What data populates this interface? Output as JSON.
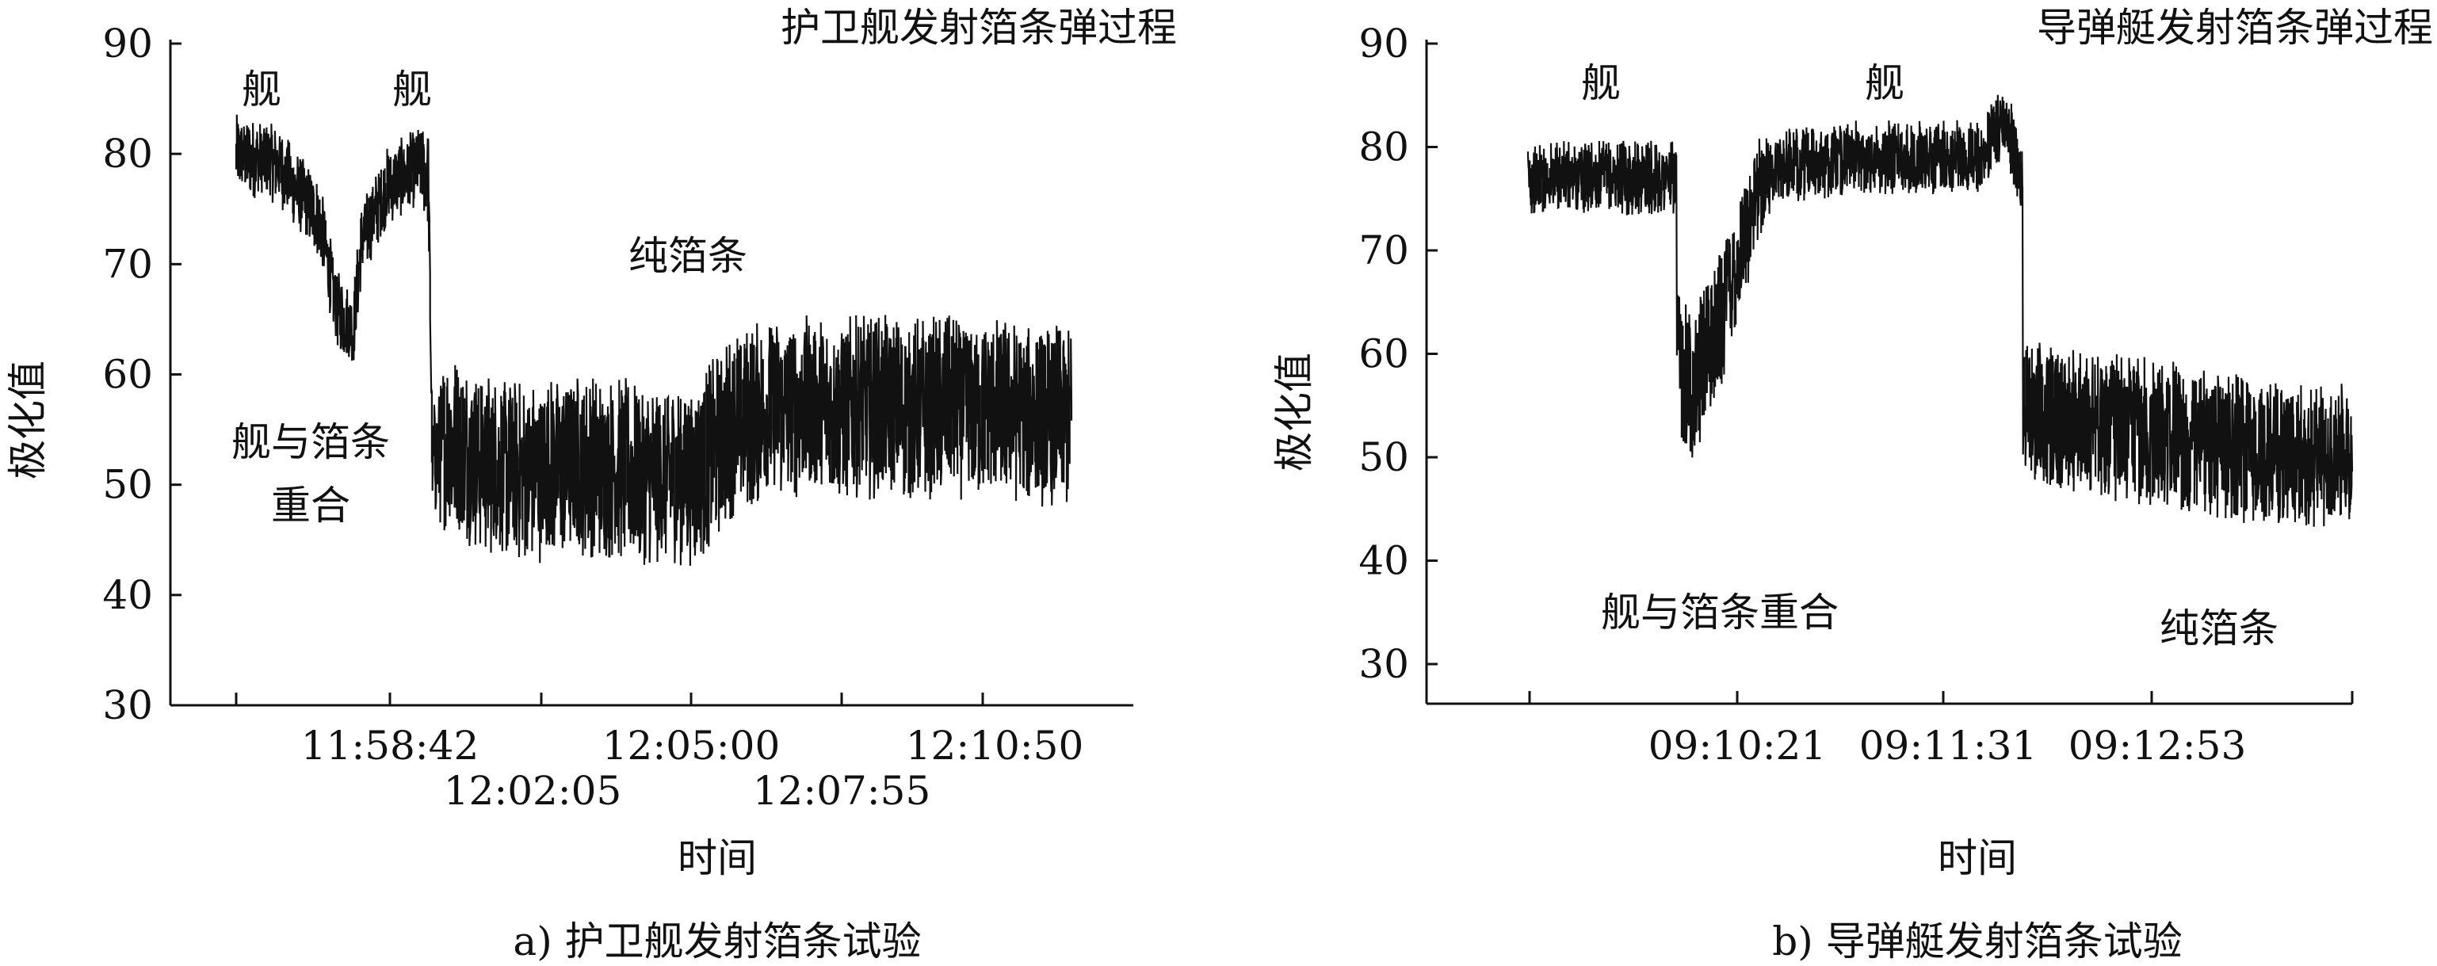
{
  "chart_data": [
    {
      "type": "line",
      "title": "护卫舰发射箔条弹过程",
      "caption": "a) 护卫舰发射箔条试验",
      "ylabel": "极化值",
      "xlabel": "时间",
      "ylim": [
        30,
        90
      ],
      "yticks": [
        30,
        40,
        50,
        60,
        70,
        80,
        90
      ],
      "xtick_labels": [
        "11:58:42",
        "12:02:05",
        "12:05:00",
        "12:07:55",
        "12:10:50"
      ],
      "annotations": [
        "舰",
        "舰",
        "舰与箔条",
        "重合",
        "纯箔条"
      ],
      "series": [
        {
          "color": "#111111",
          "x": [
            0,
            0.05,
            0.09,
            0.1,
            0.12,
            0.14,
            0.15,
            0.18,
            0.22,
            0.23,
            0.235,
            0.25,
            0.3,
            0.35,
            0.4,
            0.5,
            0.55,
            0.58,
            0.6,
            0.65,
            0.7,
            0.8,
            0.9,
            1.0
          ],
          "mean": [
            80,
            79,
            75,
            74,
            66,
            64,
            72,
            77,
            79,
            78,
            52,
            54,
            52,
            51,
            52,
            51,
            51,
            54,
            56,
            57,
            57,
            57,
            57,
            56
          ],
          "spread": [
            3,
            3,
            3,
            3,
            3,
            3,
            3,
            3,
            3,
            4,
            4,
            7,
            7,
            7,
            7,
            7,
            7,
            7,
            7,
            7,
            7,
            7,
            7,
            7
          ]
        }
      ]
    },
    {
      "type": "line",
      "title": "导弹艇发射箔条弹过程",
      "caption": "b) 导弹艇发射箔条试验",
      "ylabel": "极化值",
      "xlabel": "时间",
      "ylim": [
        25,
        90
      ],
      "yticks": [
        30,
        40,
        50,
        60,
        70,
        80,
        90
      ],
      "xtick_labels": [
        "09:10:21",
        "09:11:31",
        "09:12:53"
      ],
      "annotations": [
        "舰",
        "舰",
        "舰与箔条重合",
        "纯箔条"
      ],
      "series": [
        {
          "color": "#111111",
          "x": [
            0,
            0.18,
            0.18,
            0.2,
            0.22,
            0.25,
            0.28,
            0.3,
            0.4,
            0.5,
            0.55,
            0.58,
            0.6,
            0.6,
            0.7,
            0.8,
            0.9,
            1.0
          ],
          "mean": [
            77,
            77,
            60,
            57,
            60,
            68,
            76,
            78,
            79,
            79,
            79,
            83,
            76,
            55,
            53,
            52,
            50,
            50
          ],
          "spread": [
            3,
            3,
            6,
            6,
            6,
            6,
            4,
            3,
            3,
            3,
            3,
            3,
            3,
            6,
            6,
            6,
            6,
            6
          ]
        }
      ]
    }
  ]
}
